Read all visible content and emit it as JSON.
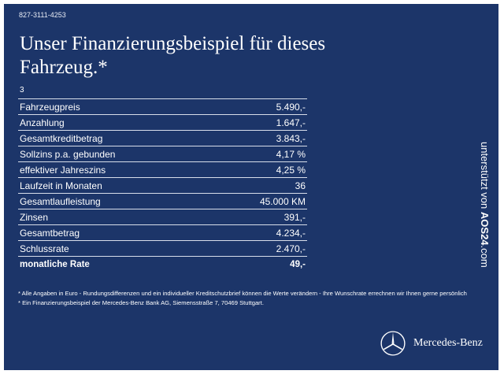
{
  "header": {
    "id_line": "827-3111-4253",
    "title_line1": "Unser Finanzierungsbeispiel für dieses",
    "title_line2": "Fahrzeug.*",
    "footnote_marker": "3"
  },
  "table": {
    "rows": [
      {
        "label": "Fahrzeugpreis",
        "value": "5.490,-"
      },
      {
        "label": "Anzahlung",
        "value": "1.647,-"
      },
      {
        "label": "Gesamtkreditbetrag",
        "value": "3.843,-"
      },
      {
        "label": "Sollzins p.a. gebunden",
        "value": "4,17 %"
      },
      {
        "label": "effektiver Jahreszins",
        "value": "4,25 %"
      },
      {
        "label": "Laufzeit in Monaten",
        "value": "36"
      },
      {
        "label": "Gesamtlaufleistung",
        "value": "45.000 KM"
      },
      {
        "label": "Zinsen",
        "value": "391,-"
      },
      {
        "label": "Gesamtbetrag",
        "value": "4.234,-"
      },
      {
        "label": "Schlussrate",
        "value": "2.470,-"
      }
    ],
    "highlight": {
      "label": "monatliche Rate",
      "value": "49,-"
    }
  },
  "notes": {
    "line1": "* Alle Angaben in Euro - Rundungsdifferenzen und ein individueller Kreditschutzbrief können die Werte verändern - Ihre Wunschrate errechnen wir Ihnen gerne persönlich",
    "line2": "* Ein Finanzierungsbeispiel der Mercedes-Benz Bank AG, Siemensstraße 7, 70469 Stuttgart."
  },
  "side_credit": {
    "prefix": "unterstützt von",
    "brand": "AOS24",
    "suffix": ".com"
  },
  "logo": {
    "text": "Mercedes-Benz",
    "icon": "mercedes-star-icon"
  },
  "colors": {
    "background": "#1c3569",
    "text": "#ffffff"
  }
}
